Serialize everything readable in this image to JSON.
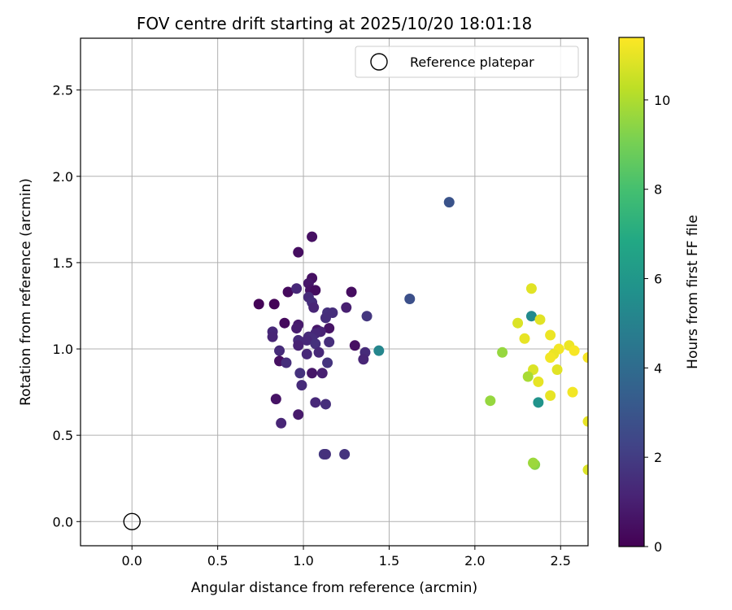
{
  "chart_data": {
    "type": "scatter",
    "title": "FOV centre drift starting at 2025/10/20 18:01:18",
    "xlabel": "Angular distance from reference (arcmin)",
    "ylabel": "Rotation from reference (arcmin)",
    "xlim": [
      -0.3,
      2.66
    ],
    "ylim": [
      -0.14,
      2.8
    ],
    "xticks": [
      "0.0",
      "0.5",
      "1.0",
      "1.5",
      "2.0",
      "2.5"
    ],
    "yticks": [
      "0.0",
      "0.5",
      "1.0",
      "1.5",
      "2.0",
      "2.5"
    ],
    "grid": true,
    "legend": {
      "position": "top-right",
      "entries": [
        "Reference platepar"
      ]
    },
    "colorbar": {
      "label": "Hours from first FF file",
      "range": [
        0,
        11.4
      ],
      "ticks": [
        "0",
        "2",
        "4",
        "6",
        "8",
        "10"
      ],
      "colormap": "viridis"
    },
    "reference_point": {
      "x": 0.0,
      "y": 0.0
    },
    "points": [
      {
        "x": 0.74,
        "y": 1.26,
        "h": 0.1
      },
      {
        "x": 0.83,
        "y": 1.26,
        "h": 0.1
      },
      {
        "x": 0.91,
        "y": 1.33,
        "h": 0.3
      },
      {
        "x": 0.97,
        "y": 1.56,
        "h": 0.4
      },
      {
        "x": 1.05,
        "y": 1.65,
        "h": 0.5
      },
      {
        "x": 1.05,
        "y": 1.41,
        "h": 0.5
      },
      {
        "x": 1.03,
        "y": 1.38,
        "h": 0.7
      },
      {
        "x": 1.04,
        "y": 1.34,
        "h": 0.6
      },
      {
        "x": 1.07,
        "y": 1.34,
        "h": 0.4
      },
      {
        "x": 1.28,
        "y": 1.33,
        "h": 0.4
      },
      {
        "x": 0.96,
        "y": 1.35,
        "h": 1.3
      },
      {
        "x": 1.03,
        "y": 1.3,
        "h": 1.4
      },
      {
        "x": 1.05,
        "y": 1.27,
        "h": 1.5
      },
      {
        "x": 1.06,
        "y": 1.24,
        "h": 1.2
      },
      {
        "x": 1.25,
        "y": 1.24,
        "h": 1.0
      },
      {
        "x": 1.14,
        "y": 1.21,
        "h": 1.6
      },
      {
        "x": 1.17,
        "y": 1.21,
        "h": 1.5
      },
      {
        "x": 1.13,
        "y": 1.18,
        "h": 1.5
      },
      {
        "x": 1.37,
        "y": 1.19,
        "h": 1.8
      },
      {
        "x": 0.89,
        "y": 1.15,
        "h": 0.3
      },
      {
        "x": 0.97,
        "y": 1.14,
        "h": 0.8
      },
      {
        "x": 0.96,
        "y": 1.12,
        "h": 0.9
      },
      {
        "x": 1.15,
        "y": 1.12,
        "h": 0.6
      },
      {
        "x": 1.08,
        "y": 1.11,
        "h": 0.7
      },
      {
        "x": 1.1,
        "y": 1.1,
        "h": 1.1
      },
      {
        "x": 1.07,
        "y": 1.09,
        "h": 1.3
      },
      {
        "x": 0.82,
        "y": 1.1,
        "h": 1.3
      },
      {
        "x": 0.82,
        "y": 1.07,
        "h": 1.2
      },
      {
        "x": 1.03,
        "y": 1.07,
        "h": 1.4
      },
      {
        "x": 1.05,
        "y": 1.06,
        "h": 1.5
      },
      {
        "x": 0.97,
        "y": 1.05,
        "h": 1.4
      },
      {
        "x": 1.15,
        "y": 1.04,
        "h": 1.5
      },
      {
        "x": 1.02,
        "y": 1.05,
        "h": 1.3
      },
      {
        "x": 1.07,
        "y": 1.03,
        "h": 1.6
      },
      {
        "x": 0.97,
        "y": 1.02,
        "h": 1.1
      },
      {
        "x": 1.3,
        "y": 1.02,
        "h": 0.5
      },
      {
        "x": 0.86,
        "y": 0.99,
        "h": 1.4
      },
      {
        "x": 1.02,
        "y": 0.97,
        "h": 1.3
      },
      {
        "x": 1.09,
        "y": 0.98,
        "h": 1.3
      },
      {
        "x": 1.36,
        "y": 0.98,
        "h": 1.4
      },
      {
        "x": 1.35,
        "y": 0.94,
        "h": 1.2
      },
      {
        "x": 0.86,
        "y": 0.93,
        "h": 0.5
      },
      {
        "x": 0.9,
        "y": 0.92,
        "h": 1.5
      },
      {
        "x": 1.14,
        "y": 0.92,
        "h": 1.7
      },
      {
        "x": 1.44,
        "y": 0.99,
        "h": 5.2
      },
      {
        "x": 0.98,
        "y": 0.86,
        "h": 1.6
      },
      {
        "x": 1.05,
        "y": 0.86,
        "h": 0.7
      },
      {
        "x": 1.11,
        "y": 0.86,
        "h": 1.0
      },
      {
        "x": 0.99,
        "y": 0.79,
        "h": 1.4
      },
      {
        "x": 0.84,
        "y": 0.71,
        "h": 0.6
      },
      {
        "x": 1.07,
        "y": 0.69,
        "h": 1.3
      },
      {
        "x": 1.13,
        "y": 0.68,
        "h": 1.5
      },
      {
        "x": 0.97,
        "y": 0.62,
        "h": 0.8
      },
      {
        "x": 0.87,
        "y": 0.57,
        "h": 1.2
      },
      {
        "x": 1.12,
        "y": 0.39,
        "h": 1.8
      },
      {
        "x": 1.13,
        "y": 0.39,
        "h": 1.6
      },
      {
        "x": 1.24,
        "y": 0.39,
        "h": 1.7
      },
      {
        "x": 1.62,
        "y": 1.29,
        "h": 2.8
      },
      {
        "x": 1.85,
        "y": 1.85,
        "h": 2.9
      },
      {
        "x": 2.33,
        "y": 1.35,
        "h": 10.9
      },
      {
        "x": 2.33,
        "y": 1.19,
        "h": 5.4
      },
      {
        "x": 2.38,
        "y": 1.17,
        "h": 10.9
      },
      {
        "x": 2.25,
        "y": 1.15,
        "h": 10.8
      },
      {
        "x": 2.44,
        "y": 1.08,
        "h": 11.1
      },
      {
        "x": 2.29,
        "y": 1.06,
        "h": 11.0
      },
      {
        "x": 2.55,
        "y": 1.02,
        "h": 11.1
      },
      {
        "x": 2.49,
        "y": 1.0,
        "h": 11.2
      },
      {
        "x": 2.58,
        "y": 0.99,
        "h": 11.3
      },
      {
        "x": 2.16,
        "y": 0.98,
        "h": 9.6
      },
      {
        "x": 2.46,
        "y": 0.97,
        "h": 11.1
      },
      {
        "x": 2.44,
        "y": 0.95,
        "h": 11.2
      },
      {
        "x": 2.66,
        "y": 0.95,
        "h": 11.3
      },
      {
        "x": 2.34,
        "y": 0.88,
        "h": 10.8
      },
      {
        "x": 2.48,
        "y": 0.88,
        "h": 10.9
      },
      {
        "x": 2.31,
        "y": 0.84,
        "h": 9.9
      },
      {
        "x": 2.37,
        "y": 0.81,
        "h": 11.0
      },
      {
        "x": 2.57,
        "y": 0.75,
        "h": 11.2
      },
      {
        "x": 2.44,
        "y": 0.73,
        "h": 11.0
      },
      {
        "x": 2.09,
        "y": 0.7,
        "h": 9.6
      },
      {
        "x": 2.37,
        "y": 0.69,
        "h": 5.8
      },
      {
        "x": 2.66,
        "y": 0.58,
        "h": 11.0
      },
      {
        "x": 2.35,
        "y": 0.33,
        "h": 9.4
      },
      {
        "x": 2.34,
        "y": 0.34,
        "h": 9.7
      },
      {
        "x": 2.66,
        "y": 0.3,
        "h": 10.8
      }
    ]
  }
}
